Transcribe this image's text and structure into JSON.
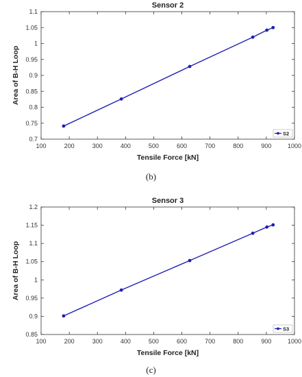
{
  "panels": [
    {
      "label": "(b)"
    },
    {
      "label": "(c)"
    }
  ],
  "chart_data": [
    {
      "type": "line",
      "title": "Sensor 2",
      "xlabel": "Tensile Force [kN]",
      "ylabel": "Area of B-H Loop",
      "xlim": [
        100,
        1000
      ],
      "ylim": [
        0.7,
        1.1
      ],
      "xticks": [
        "100",
        "200",
        "300",
        "400",
        "500",
        "600",
        "700",
        "800",
        "900",
        "1000"
      ],
      "yticks": [
        "0.7",
        "0.75",
        "0.8",
        "0.85",
        "0.9",
        "0.95",
        "1",
        "1.05",
        "1.1"
      ],
      "grid": false,
      "legend_position": "bottom-right",
      "color": "#1f1fb4",
      "series": [
        {
          "name": "S2",
          "x": [
            180,
            385,
            628,
            852,
            902,
            924
          ],
          "y": [
            0.741,
            0.826,
            0.928,
            1.02,
            1.042,
            1.05
          ]
        }
      ]
    },
    {
      "type": "line",
      "title": "Sensor 3",
      "xlabel": "Tensile Force [kN]",
      "ylabel": "Area of B-H Loop",
      "xlim": [
        100,
        1000
      ],
      "ylim": [
        0.85,
        1.2
      ],
      "xticks": [
        "100",
        "200",
        "300",
        "400",
        "500",
        "600",
        "700",
        "800",
        "900",
        "1000"
      ],
      "yticks": [
        "0.85",
        "0.9",
        "0.95",
        "1",
        "1.05",
        "1.1",
        "1.15",
        "1.2"
      ],
      "grid": false,
      "legend_position": "bottom-right",
      "color": "#1f1fb4",
      "series": [
        {
          "name": "S3",
          "x": [
            180,
            385,
            628,
            852,
            902,
            924
          ],
          "y": [
            0.901,
            0.972,
            1.053,
            1.128,
            1.145,
            1.151
          ]
        }
      ]
    }
  ]
}
